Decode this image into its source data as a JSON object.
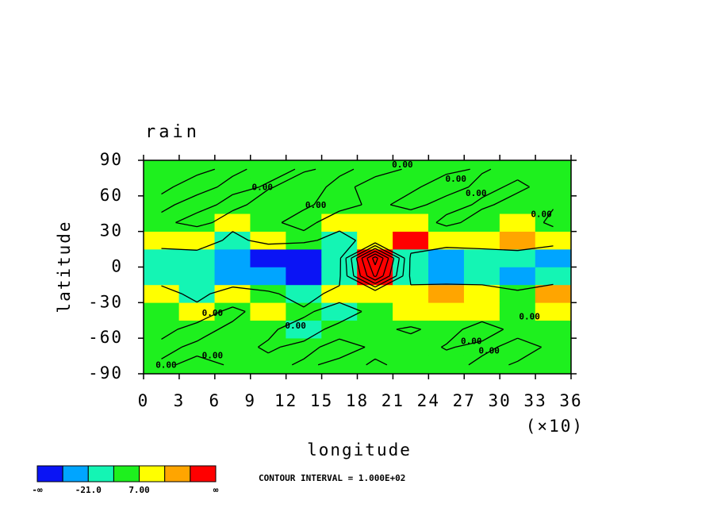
{
  "chart_data": {
    "type": "contour",
    "title": "rain",
    "x_label": "longitude",
    "y_label": "latitude",
    "x_multiplier_label": "(×10)",
    "contour_interval_text": "CONTOUR INTERVAL = 1.000E+02",
    "contour_interval": 100,
    "xlim": [
      0,
      36
    ],
    "ylim": [
      -90,
      90
    ],
    "xticks": [
      0,
      3,
      6,
      9,
      12,
      15,
      18,
      21,
      24,
      27,
      30,
      33,
      36
    ],
    "yticks": [
      -90,
      -60,
      -30,
      0,
      30,
      60,
      90
    ],
    "x": [
      1.5,
      4.5,
      7.5,
      10.5,
      13.5,
      16.5,
      19.5,
      22.5,
      25.5,
      28.5,
      31.5,
      34.5
    ],
    "y": [
      -82.5,
      -67.5,
      -52.5,
      -37.5,
      -22.5,
      -7.5,
      7.5,
      22.5,
      37.5,
      52.5,
      67.5,
      82.5
    ],
    "z": [
      [
        2,
        -3,
        1,
        4,
        -2,
        3,
        -1,
        2,
        5,
        -3,
        1,
        2
      ],
      [
        -4,
        3,
        5,
        -2,
        4,
        -5,
        2,
        6,
        -1,
        3,
        -4,
        2
      ],
      [
        5,
        -6,
        4,
        3,
        -8,
        6,
        3,
        -2,
        5,
        -6,
        4,
        3
      ],
      [
        3,
        10,
        -5,
        9,
        4,
        -10,
        6,
        12,
        20,
        8,
        3,
        15
      ],
      [
        12,
        -9,
        15,
        5,
        -12,
        10,
        8,
        18,
        26,
        16,
        6,
        22
      ],
      [
        -15,
        -20,
        -25,
        -30,
        -38,
        -12,
        520,
        -18,
        -22,
        -16,
        -25,
        -20
      ],
      [
        -18,
        -16,
        -22,
        -36,
        -40,
        -20,
        650,
        -15,
        -24,
        -20,
        -18,
        -22
      ],
      [
        15,
        20,
        -8,
        10,
        6,
        -10,
        12,
        40,
        16,
        18,
        24,
        10
      ],
      [
        4,
        -6,
        8,
        3,
        -5,
        9,
        18,
        10,
        -4,
        6,
        8,
        -3
      ],
      [
        -3,
        5,
        -4,
        6,
        2,
        -5,
        3,
        -4,
        5,
        -2,
        4,
        1
      ],
      [
        2,
        -4,
        3,
        -1,
        5,
        -3,
        4,
        2,
        -5,
        3,
        -2,
        4
      ],
      [
        1,
        2,
        -2,
        3,
        -1,
        2,
        -3,
        1,
        2,
        -1,
        3,
        2
      ]
    ],
    "levels": [
      -35,
      -21,
      -7,
      7,
      21,
      35
    ],
    "colors": [
      "#0a14f5",
      "#00a5ff",
      "#14f5b4",
      "#1ef01e",
      "#ffff00",
      "#ffa500",
      "#ff0000"
    ],
    "colorbar_labels": [
      "-∞",
      null,
      "-21.0",
      null,
      "7.00",
      null,
      null,
      "∞"
    ],
    "contour_labels": [
      {
        "text": "0.00",
        "x": 1.9,
        "y": -83
      },
      {
        "text": "0.00",
        "x": 10,
        "y": 67
      },
      {
        "text": "0.00",
        "x": 14.5,
        "y": 52
      },
      {
        "text": "0.00",
        "x": 21.8,
        "y": 86
      },
      {
        "text": "0.00",
        "x": 26.3,
        "y": 74
      },
      {
        "text": "0.00",
        "x": 28,
        "y": 62
      },
      {
        "text": "0.00",
        "x": 33.5,
        "y": 44
      },
      {
        "text": "0.00",
        "x": 5.8,
        "y": -39
      },
      {
        "text": "0.00",
        "x": 12.8,
        "y": -50
      },
      {
        "text": "0.00",
        "x": 5.8,
        "y": -75
      },
      {
        "text": "0.00",
        "x": 27.6,
        "y": -63
      },
      {
        "text": "0.00",
        "x": 29.1,
        "y": -71
      },
      {
        "text": "0.00",
        "x": 32.5,
        "y": -42
      }
    ]
  }
}
